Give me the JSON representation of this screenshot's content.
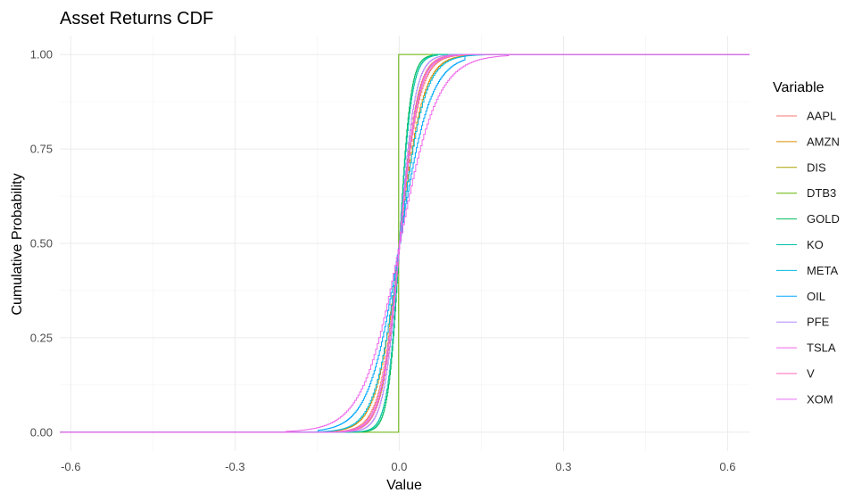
{
  "chart_data": {
    "type": "line",
    "title": "Asset Returns CDF",
    "xlabel": "Value",
    "ylabel": "Cumulative Probability",
    "xlim": [
      -0.62,
      0.64
    ],
    "ylim": [
      -0.05,
      1.05
    ],
    "xticks": [
      -0.6,
      -0.3,
      0.0,
      0.3,
      0.6
    ],
    "xtick_labels": [
      "-0.6",
      "-0.3",
      "0.0",
      "0.3",
      "0.6"
    ],
    "yticks": [
      0.0,
      0.25,
      0.5,
      0.75,
      1.0
    ],
    "ytick_labels": [
      "0.00",
      "0.25",
      "0.50",
      "0.75",
      "1.00"
    ],
    "grid": true,
    "legend_title": "Variable",
    "legend_position": "right",
    "series": [
      {
        "name": "AAPL",
        "color": "#F8766D",
        "scale": 0.018,
        "min": -0.13,
        "max": 0.12
      },
      {
        "name": "AMZN",
        "color": "#DB8E00",
        "scale": 0.021,
        "min": -0.14,
        "max": 0.14
      },
      {
        "name": "DIS",
        "color": "#AEA200",
        "scale": 0.016,
        "min": -0.12,
        "max": 0.12
      },
      {
        "name": "DTB3",
        "color": "#64B200",
        "scale": 0.0005,
        "min": -0.001,
        "max": 0.001
      },
      {
        "name": "GOLD",
        "color": "#00BD5C",
        "scale": 0.01,
        "min": -0.09,
        "max": 0.06
      },
      {
        "name": "KO",
        "color": "#00C1A7",
        "scale": 0.011,
        "min": -0.09,
        "max": 0.07
      },
      {
        "name": "META",
        "color": "#00BADE",
        "scale": 0.022,
        "min": -0.19,
        "max": 0.16
      },
      {
        "name": "OIL",
        "color": "#00A6FF",
        "scale": 0.028,
        "min": -0.15,
        "max": 0.12
      },
      {
        "name": "PFE",
        "color": "#B385FF",
        "scale": 0.014,
        "min": -0.1,
        "max": 0.09
      },
      {
        "name": "TSLA",
        "color": "#EF67EB",
        "scale": 0.034,
        "min": -0.21,
        "max": 0.2
      },
      {
        "name": "V",
        "color": "#FF63B6",
        "scale": 0.016,
        "min": -0.13,
        "max": 0.13
      },
      {
        "name": "XOM",
        "color": "#E76BF3",
        "scale": 0.017,
        "min": -0.12,
        "max": 0.12
      }
    ]
  }
}
